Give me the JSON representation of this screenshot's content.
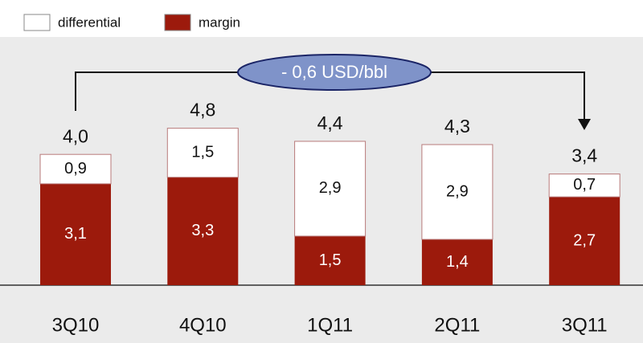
{
  "chart_data": {
    "type": "stacked_bar",
    "categories": [
      "3Q10",
      "4Q10",
      "1Q11",
      "2Q11",
      "3Q11"
    ],
    "series": [
      {
        "name": "margin",
        "color": "#9c1a0c",
        "values": [
          3.1,
          3.3,
          1.5,
          1.4,
          2.7
        ],
        "value_labels": [
          "3,1",
          "3,3",
          "1,5",
          "1,4",
          "2,7"
        ]
      },
      {
        "name": "differential",
        "color": "#ffffff",
        "values": [
          0.9,
          1.5,
          2.9,
          2.9,
          0.7
        ],
        "value_labels": [
          "0,9",
          "1,5",
          "2,9",
          "2,9",
          "0,7"
        ]
      }
    ],
    "totals": [
      4.0,
      4.8,
      4.4,
      4.3,
      3.4
    ],
    "total_labels": [
      "4,0",
      "4,8",
      "4,4",
      "4,3",
      "3,4"
    ],
    "annotation": "- 0,6 USD/bbl"
  }
}
